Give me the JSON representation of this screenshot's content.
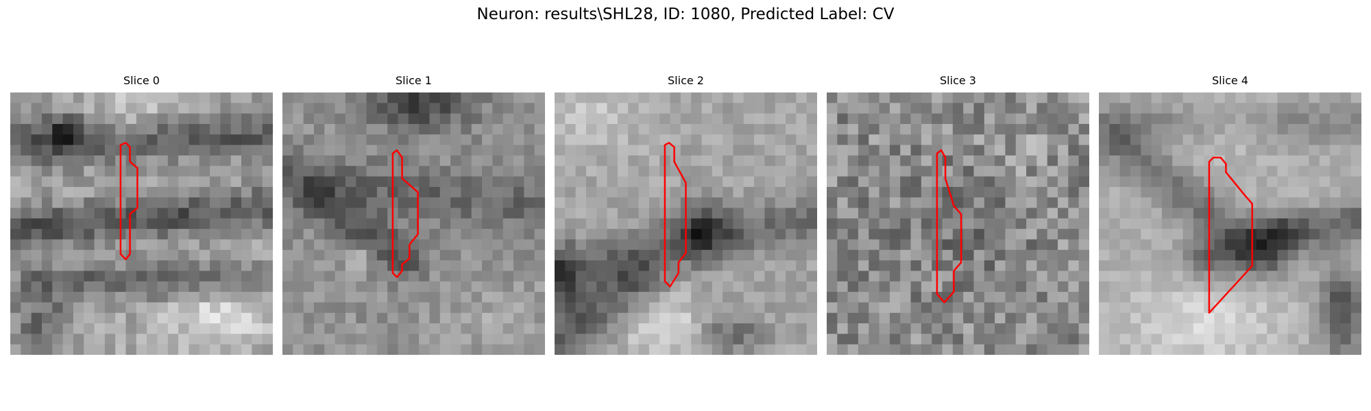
{
  "figure": {
    "title": "Neuron: results\\SHL28, ID: 1080, Predicted Label: CV"
  },
  "panels": [
    {
      "title": "Slice 0"
    },
    {
      "title": "Slice 1"
    },
    {
      "title": "Slice 2"
    },
    {
      "title": "Slice 3"
    },
    {
      "title": "Slice 4"
    }
  ],
  "colors": {
    "contour": "#ff0000",
    "background": "#ffffff"
  }
}
